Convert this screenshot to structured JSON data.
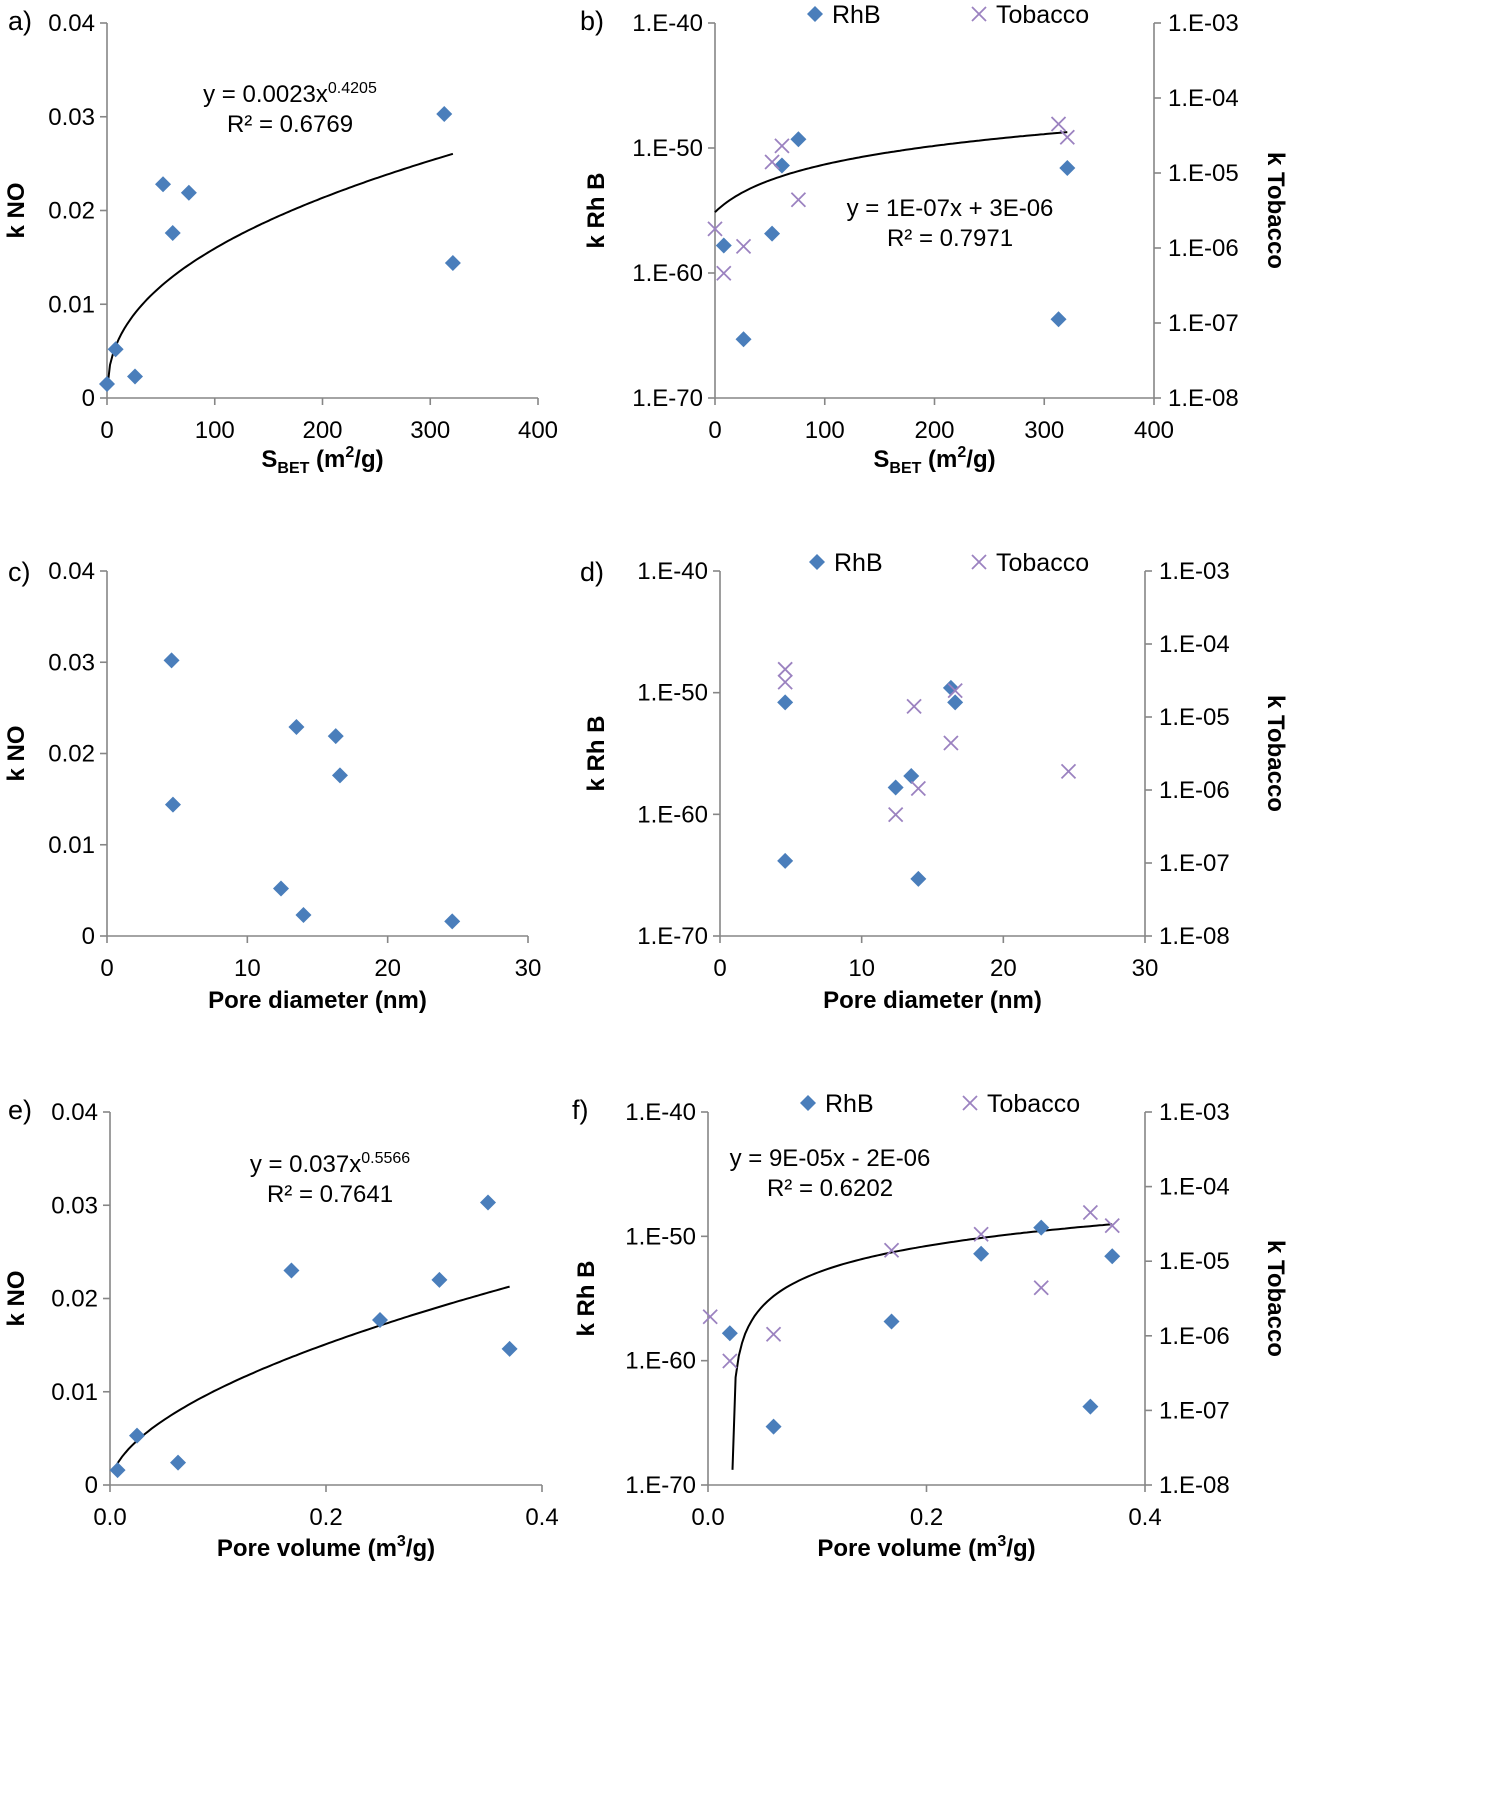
{
  "chart_data": [
    {
      "id": "a",
      "type": "scatter",
      "panel_label": "a)",
      "xlabel": {
        "main": "S",
        "sub": "BET",
        "rest": " (m",
        "sup": "2",
        "tail": "/g)"
      },
      "ylabel": "k NO",
      "xlim": [
        0,
        400
      ],
      "ylim": [
        0,
        0.04
      ],
      "xticks": [
        "0",
        "100",
        "200",
        "300",
        "400"
      ],
      "yticks": [
        "0",
        "0.01",
        "0.02",
        "0.03",
        "0.04"
      ],
      "series": [
        {
          "color": "#4a7ebb",
          "marker": "diamond",
          "points": [
            [
              0,
              0.0015
            ],
            [
              8,
              0.0052
            ],
            [
              26,
              0.0023
            ],
            [
              52,
              0.0228
            ],
            [
              61,
              0.0176
            ],
            [
              76,
              0.0219
            ],
            [
              313,
              0.0303
            ],
            [
              321,
              0.0144
            ]
          ]
        }
      ],
      "trendline": {
        "kind": "power",
        "a": 0.0023,
        "b": 0.4205,
        "x_range": [
          0.1,
          321
        ]
      },
      "annotation": {
        "line1_pre": "y = 0.0023x",
        "line1_sup": "0.4205",
        "line2": "R² = 0.6769"
      }
    },
    {
      "id": "b",
      "type": "scatter",
      "panel_label": "b)",
      "xlabel": {
        "main": "S",
        "sub": "BET",
        "rest": " (m",
        "sup": "2",
        "tail": "/g)"
      },
      "ylabel": "k Rh B",
      "y2label": "k Tobacco",
      "xlim": [
        0,
        400
      ],
      "ylim_log_exp": [
        -70,
        -40
      ],
      "y2lim_log_exp": [
        -8,
        -3
      ],
      "xticks": [
        "0",
        "100",
        "200",
        "300",
        "400"
      ],
      "yticks": [
        "1.E-70",
        "1.E-60",
        "1.E-50",
        "1.E-40"
      ],
      "y2ticks": [
        "1.E-08",
        "1.E-07",
        "1.E-06",
        "1.E-05",
        "1.E-04",
        "1.E-03"
      ],
      "legend": {
        "position": "top",
        "items": [
          {
            "label": "RhB",
            "marker": "diamond",
            "color": "#4a7ebb"
          },
          {
            "label": "Tobacco",
            "marker": "x",
            "color": "#9b82c0"
          }
        ]
      },
      "series": [
        {
          "name": "RhB",
          "axis": "left",
          "color": "#4a7ebb",
          "marker": "diamond",
          "points": [
            [
              8,
              1.6e-58
            ],
            [
              26,
              5e-66
            ],
            [
              52,
              1.4e-57
            ],
            [
              61,
              4e-52
            ],
            [
              76,
              5e-50
            ],
            [
              313,
              2e-64
            ],
            [
              321,
              2.5e-52
            ]
          ]
        },
        {
          "name": "Tobacco",
          "axis": "right",
          "color": "#9b82c0",
          "marker": "x",
          "points": [
            [
              0,
              1.8e-06
            ],
            [
              8,
              4.6e-07
            ],
            [
              26,
              1.05e-06
            ],
            [
              52,
              1.4e-05
            ],
            [
              61,
              2.3e-05
            ],
            [
              76,
              4.4e-06
            ],
            [
              313,
              4.5e-05
            ],
            [
              321,
              3e-05
            ]
          ]
        }
      ],
      "trendline": {
        "kind": "linear",
        "axis": "right",
        "a": 1e-07,
        "b": 3e-06,
        "x_range": [
          0,
          321
        ]
      },
      "annotation": {
        "line1": "y = 1E-07x  + 3E-06",
        "line2": "R² = 0.7971"
      }
    },
    {
      "id": "c",
      "type": "scatter",
      "panel_label": "c)",
      "xlabel": {
        "text": "Pore diameter (nm)"
      },
      "ylabel": "k NO",
      "xlim": [
        0,
        30
      ],
      "ylim": [
        0,
        0.04
      ],
      "xticks": [
        "0",
        "10",
        "20",
        "30"
      ],
      "yticks": [
        "0",
        "0.01",
        "0.02",
        "0.03",
        "0.04"
      ],
      "series": [
        {
          "color": "#4a7ebb",
          "marker": "diamond",
          "points": [
            [
              4.6,
              0.0302
            ],
            [
              4.7,
              0.0144
            ],
            [
              12.4,
              0.0052
            ],
            [
              13.5,
              0.0229
            ],
            [
              14.0,
              0.0023
            ],
            [
              16.3,
              0.0219
            ],
            [
              16.6,
              0.0176
            ],
            [
              24.6,
              0.0016
            ]
          ]
        }
      ]
    },
    {
      "id": "d",
      "type": "scatter",
      "panel_label": "d)",
      "xlabel": {
        "text": "Pore diameter (nm)"
      },
      "ylabel": "k Rh B",
      "y2label": "k Tobacco",
      "xlim": [
        0,
        30
      ],
      "ylim_log_exp": [
        -70,
        -40
      ],
      "y2lim_log_exp": [
        -8,
        -3
      ],
      "xticks": [
        "0",
        "10",
        "20",
        "30"
      ],
      "yticks": [
        "1.E-70",
        "1.E-60",
        "1.E-50",
        "1.E-40"
      ],
      "y2ticks": [
        "1.E-08",
        "1.E-07",
        "1.E-06",
        "1.E-05",
        "1.E-04",
        "1.E-03"
      ],
      "legend": {
        "position": "top",
        "items": [
          {
            "label": "RhB",
            "marker": "diamond",
            "color": "#4a7ebb"
          },
          {
            "label": "Tobacco",
            "marker": "x",
            "color": "#9b82c0"
          }
        ]
      },
      "series": [
        {
          "name": "RhB",
          "axis": "left",
          "color": "#4a7ebb",
          "marker": "diamond",
          "points": [
            [
              4.6,
              1.6e-51
            ],
            [
              4.6,
              1.5e-64
            ],
            [
              12.4,
              1.6e-58
            ],
            [
              13.5,
              1.4e-57
            ],
            [
              14.0,
              5e-66
            ],
            [
              16.3,
              2.5e-50
            ],
            [
              16.6,
              1.6e-51
            ]
          ]
        },
        {
          "name": "Tobacco",
          "axis": "right",
          "color": "#9b82c0",
          "marker": "x",
          "points": [
            [
              4.6,
              4.5e-05
            ],
            [
              4.6,
              3e-05
            ],
            [
              12.4,
              4.6e-07
            ],
            [
              13.7,
              1.4e-05
            ],
            [
              14.0,
              1.05e-06
            ],
            [
              16.3,
              4.4e-06
            ],
            [
              16.6,
              2.3e-05
            ],
            [
              24.6,
              1.8e-06
            ]
          ]
        }
      ]
    },
    {
      "id": "e",
      "type": "scatter",
      "panel_label": "e)",
      "xlabel": {
        "main": "Pore volume (m",
        "sup": "3",
        "tail": "/g)"
      },
      "ylabel": "k NO",
      "xlim": [
        0,
        0.4
      ],
      "ylim": [
        0,
        0.04
      ],
      "xticks": [
        "0.0",
        "0.2",
        "0.4"
      ],
      "yticks": [
        "0",
        "0.01",
        "0.02",
        "0.03",
        "0.04"
      ],
      "series": [
        {
          "color": "#4a7ebb",
          "marker": "diamond",
          "points": [
            [
              0.007,
              0.0016
            ],
            [
              0.025,
              0.0053
            ],
            [
              0.063,
              0.0024
            ],
            [
              0.168,
              0.023
            ],
            [
              0.25,
              0.0177
            ],
            [
              0.305,
              0.022
            ],
            [
              0.35,
              0.0303
            ],
            [
              0.37,
              0.0146
            ]
          ]
        }
      ],
      "trendline": {
        "kind": "power",
        "a": 0.037,
        "b": 0.5566,
        "x_range": [
          0.005,
          0.37
        ]
      },
      "annotation": {
        "line1_pre": "y = 0.037x",
        "line1_sup": "0.5566",
        "line2": "R² = 0.7641"
      }
    },
    {
      "id": "f",
      "type": "scatter",
      "panel_label": "f)",
      "xlabel": {
        "main": "Pore volume (m",
        "sup": "3",
        "tail": "/g)"
      },
      "ylabel": "k Rh B",
      "y2label": "k Tobacco",
      "xlim": [
        0,
        0.4
      ],
      "ylim_log_exp": [
        -70,
        -40
      ],
      "y2lim_log_exp": [
        -8,
        -3
      ],
      "xticks": [
        "0.0",
        "0.2",
        "0.4"
      ],
      "yticks": [
        "1.E-70",
        "1.E-60",
        "1.E-50",
        "1.E-40"
      ],
      "y2ticks": [
        "1.E-08",
        "1.E-07",
        "1.E-06",
        "1.E-05",
        "1.E-04",
        "1.E-03"
      ],
      "legend": {
        "position": "top",
        "items": [
          {
            "label": "RhB",
            "marker": "diamond",
            "color": "#4a7ebb"
          },
          {
            "label": "Tobacco",
            "marker": "x",
            "color": "#9b82c0"
          }
        ]
      },
      "series": [
        {
          "name": "RhB",
          "axis": "left",
          "color": "#4a7ebb",
          "marker": "diamond",
          "points": [
            [
              0.02,
              1.6e-58
            ],
            [
              0.06,
              5e-66
            ],
            [
              0.168,
              1.4e-57
            ],
            [
              0.25,
              4e-52
            ],
            [
              0.305,
              5e-50
            ],
            [
              0.35,
              2e-64
            ],
            [
              0.37,
              2.5e-52
            ]
          ]
        },
        {
          "name": "Tobacco",
          "axis": "right",
          "color": "#9b82c0",
          "marker": "x",
          "points": [
            [
              0.002,
              1.8e-06
            ],
            [
              0.02,
              4.6e-07
            ],
            [
              0.06,
              1.05e-06
            ],
            [
              0.168,
              1.4e-05
            ],
            [
              0.25,
              2.3e-05
            ],
            [
              0.305,
              4.4e-06
            ],
            [
              0.35,
              4.5e-05
            ],
            [
              0.37,
              3e-05
            ]
          ]
        }
      ],
      "trendline": {
        "kind": "linear",
        "axis": "right",
        "a": 9e-05,
        "b": -2e-06,
        "x_range": [
          0.0224,
          0.37
        ]
      },
      "annotation": {
        "line1": "y = 9E-05x  - 2E-06",
        "line2": "R² = 0.6202"
      }
    }
  ]
}
